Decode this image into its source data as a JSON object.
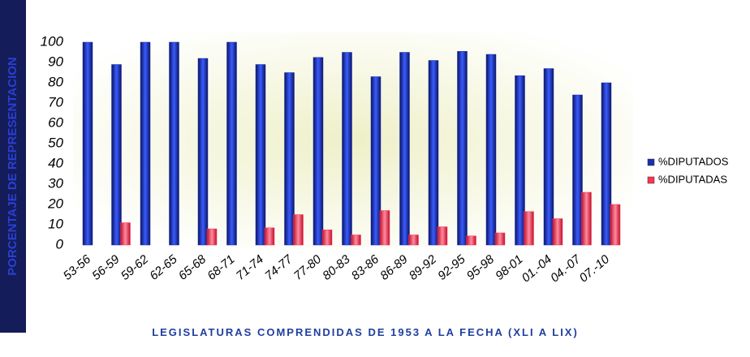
{
  "chart_data": {
    "type": "bar",
    "y_label": "PORCENTAJE DE REPRESENTACION",
    "x_label": "LEGISLATURAS COMPRENDIDAS DE 1953 A LA FECHA (XLI A LIX)",
    "categories": [
      "53-56",
      "56-59",
      "59-62",
      "62-65",
      "65-68",
      "68-71",
      "71-74",
      "74-77",
      "77-80",
      "80-83",
      "83-86",
      "86-89",
      "89-92",
      "92-95",
      "95-98",
      "98-01",
      "01.-04",
      "04.-07",
      "07.-10"
    ],
    "series": [
      {
        "name": "%DIPUTADOS",
        "color": "#1a2fb0",
        "values": [
          100,
          89,
          100,
          100,
          92,
          100,
          89,
          85,
          92.5,
          95,
          83,
          95,
          91,
          95.5,
          94,
          83.5,
          87,
          74,
          80
        ]
      },
      {
        "name": "%DIPUTADAS",
        "color": "#ff3355",
        "values": [
          0,
          11,
          0,
          0,
          8,
          0,
          8.5,
          15,
          7.5,
          5,
          17,
          5,
          9,
          4.5,
          6,
          16.5,
          13,
          26,
          20
        ]
      }
    ],
    "ylim": [
      0,
      100
    ],
    "yticks": [
      0,
      10,
      20,
      30,
      40,
      50,
      60,
      70,
      80,
      90,
      100
    ],
    "legend": "right"
  }
}
